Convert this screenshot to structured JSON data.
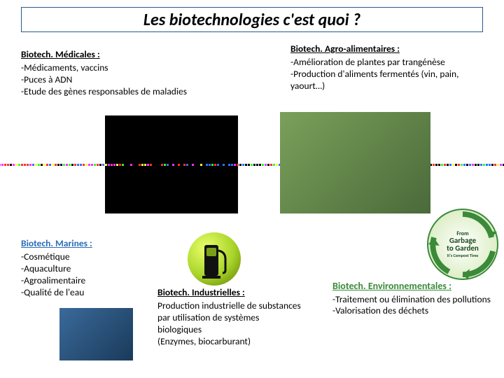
{
  "title": "Les biotechnologies c'est quoi ?",
  "medicales": {
    "heading": "Biotech. Médicales :",
    "body": "-Médicaments, vaccins\n-Puces à ADN\n-Etude des gènes responsables de maladies",
    "heading_color": "#000000"
  },
  "agro": {
    "heading": "Biotech. Agro-alimentaires :",
    "body": "-Amélioration de plantes par trangénèse\n-Production d'aliments fermentés (vin, pain, yaourt…)",
    "heading_color": "#000000"
  },
  "marines": {
    "heading": "Biotech. Marines :",
    "body": "-Cosmétique\n-Aquaculture\n-Agroalimentaire\n-Qualité de l'eau",
    "heading_color": "#2a6db8"
  },
  "industrielles": {
    "heading": "Biotech. Industrielles :",
    "body": "Production industrielle de substances par utilisation de systèmes biologiques\n(Enzymes, biocarburant)",
    "heading_color": "#000000"
  },
  "environnementales": {
    "heading": "Biotech. Environnementales :",
    "body": "-Traitement ou élimination des pollutions\n-Valorisation des déchets",
    "heading_color": "#3a8a3a"
  },
  "badge": {
    "line1": "From",
    "line2": "Garbage",
    "line3": "to Garden",
    "line4": "It's Compost Time"
  },
  "dna_colors": [
    "#ff3030",
    "#30ff30",
    "#ffff30",
    "#3070ff",
    "#ff30ff",
    "#000000",
    "#000000",
    "#000000"
  ]
}
